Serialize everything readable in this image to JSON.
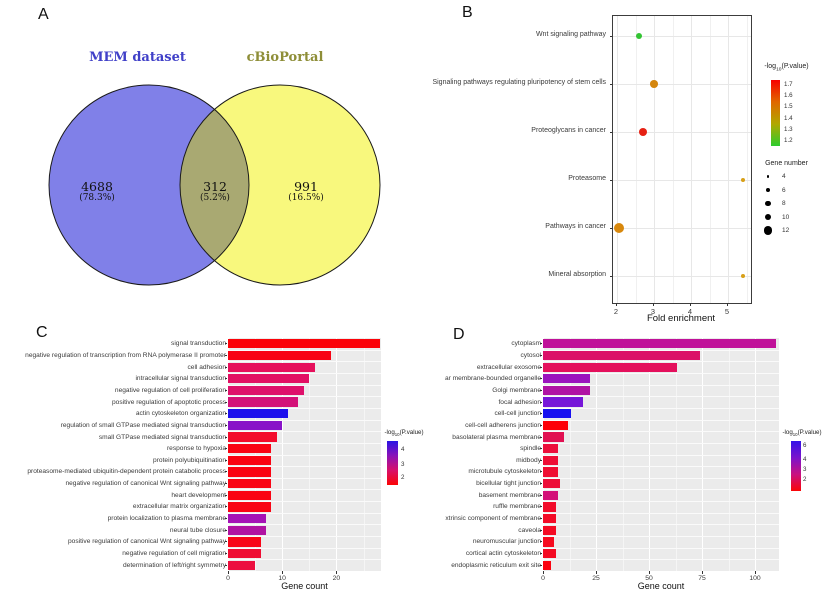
{
  "figure_background": "#ffffff",
  "chart_data": [
    {
      "panel_label": "A",
      "type": "venn",
      "sets": [
        {
          "label": "MEM dataset",
          "label_color": "#4040C8",
          "fill": "#8080E8",
          "unique_count": "4688",
          "unique_percent": "(78.3%)"
        },
        {
          "label": "cBioPortal",
          "label_color": "#8E8E38",
          "fill": "#F8F87D",
          "unique_count": "991",
          "unique_percent": "(16.5%)"
        }
      ],
      "overlap": {
        "count": "312",
        "percent": "(5.2%)",
        "fill": "#A9A972"
      },
      "outline_color": "#1a1a1a"
    },
    {
      "panel_label": "B",
      "type": "scatter",
      "xlabel": "Fold enrichment",
      "x_ticks": [
        "2",
        "3",
        "4",
        "5"
      ],
      "xlim": [
        1.9,
        5.6
      ],
      "categories": [
        "Wnt signaling pathway",
        "Signaling pathways regulating pluripotency of stem cells",
        "Proteoglycans in cancer",
        "Proteasome",
        "Pathways in cancer",
        "Mineral absorption"
      ],
      "fold_enrichment": [
        2.6,
        3.0,
        2.7,
        5.4,
        2.05,
        5.4
      ],
      "gene_number": [
        6,
        8,
        9,
        3,
        12,
        3
      ],
      "point_colors": [
        "#33C433",
        "#D4860E",
        "#E62114",
        "#D8A018",
        "#D8880C",
        "#D8A018"
      ],
      "legend_pvalue": {
        "title": {
          "prefix": "-log",
          "sub": "10",
          "suffix": "(P.value)"
        },
        "ticks": [
          "1.7",
          "1.6",
          "1.5",
          "1.4",
          "1.3",
          "1.2"
        ],
        "gradient": [
          "#F80000",
          "#E06800",
          "#B0A800",
          "#2ECC2E"
        ]
      },
      "legend_genes": {
        "title": "Gene number",
        "sizes": [
          "4",
          "6",
          "8",
          "10",
          "12"
        ]
      }
    },
    {
      "panel_label": "C",
      "type": "bar",
      "orientation": "horizontal",
      "xlabel": "Gene count",
      "x_ticks": [
        0,
        10,
        20
      ],
      "xlim": [
        0,
        28.2
      ],
      "categories": [
        "signal transduction",
        "negative regulation of transcription from RNA polymerase II promoter",
        "cell adhesion",
        "intracellular signal transduction",
        "negative regulation of cell proliferation",
        "positive regulation of apoptotic process",
        "actin cytoskeleton organization",
        "regulation of small GTPase mediated signal transduction",
        "small GTPase mediated signal transduction",
        "response to hypoxia",
        "protein polyubiquitination",
        "proteasome-mediated ubiquitin-dependent protein catabolic process",
        "negative regulation of canonical Wnt signaling pathway",
        "heart development",
        "extracellular matrix organization",
        "protein localization to plasma membrane",
        "neural tube closure",
        "positive regulation of canonical Wnt signaling pathway",
        "negative regulation of cell migration",
        "determination of left/right symmetry"
      ],
      "values": [
        28,
        19,
        16,
        15,
        14,
        13,
        11,
        10,
        9,
        8,
        8,
        8,
        8,
        8,
        8,
        7,
        7,
        6,
        6,
        5
      ],
      "bar_colors": [
        "#FB0209",
        "#F80314",
        "#E6105C",
        "#E21063",
        "#DE116B",
        "#D31278",
        "#1D10EC",
        "#8813C8",
        "#F30C2B",
        "#F90414",
        "#FA0312",
        "#FA0312",
        "#F90414",
        "#FA0312",
        "#F90414",
        "#A512B6",
        "#B012A2",
        "#F80517",
        "#EF0D33",
        "#EC0F3F"
      ],
      "legend_pvalue": {
        "title": {
          "prefix": "-log",
          "sub": "10",
          "suffix": "(P.value)"
        },
        "ticks": [
          {
            "label": "4",
            "pos": 0.18
          },
          {
            "label": "3",
            "pos": 0.52
          },
          {
            "label": "2",
            "pos": 0.82
          }
        ],
        "gradient": [
          "#2A14E4",
          "#8A12B8",
          "#D8106A",
          "#FB0505"
        ]
      }
    },
    {
      "panel_label": "D",
      "type": "bar",
      "orientation": "horizontal",
      "xlabel": "Gene count",
      "x_ticks": [
        0,
        25,
        50,
        75,
        100
      ],
      "xlim": [
        0,
        111
      ],
      "categories": [
        "cytoplasm",
        "cytosol",
        "extracellular exosome",
        "ar membrane-bounded organelle",
        "Golgi membrane",
        "focal adhesion",
        "cell-cell junction",
        "cell-cell adherens junction",
        "basolateral plasma membrane",
        "spindle",
        "midbody",
        "microtubule cytoskeleton",
        "bicellular tight junction",
        "basement membrane",
        "ruffle membrane",
        "xtrinsic component of membrane",
        "caveola",
        "neuromuscular junction",
        "cortical actin cytoskeleton",
        "endoplasmic reticulum exit site"
      ],
      "values": [
        110,
        74,
        63,
        22,
        22,
        19,
        13,
        12,
        10,
        7,
        7,
        7,
        8,
        7,
        6,
        6,
        6,
        5,
        6,
        4
      ],
      "bar_colors": [
        "#C01199",
        "#DB1168",
        "#E4105C",
        "#9B13BE",
        "#B012A4",
        "#7616D8",
        "#1810F0",
        "#FD0007",
        "#E11052",
        "#EC0F3B",
        "#EE0E35",
        "#EF0D31",
        "#ED0E38",
        "#D31178",
        "#F20C2A",
        "#F30C27",
        "#F40B23",
        "#F60A1E",
        "#F40B23",
        "#FB0310"
      ],
      "legend_pvalue": {
        "title": {
          "prefix": "-log",
          "sub": "10",
          "suffix": "(P.value)"
        },
        "ticks": [
          {
            "label": "6",
            "pos": 0.08
          },
          {
            "label": "4",
            "pos": 0.36
          },
          {
            "label": "3",
            "pos": 0.56
          },
          {
            "label": "2",
            "pos": 0.76
          }
        ],
        "gradient": [
          "#3312E8",
          "#7A14CC",
          "#C91180",
          "#FA0606"
        ]
      }
    }
  ]
}
